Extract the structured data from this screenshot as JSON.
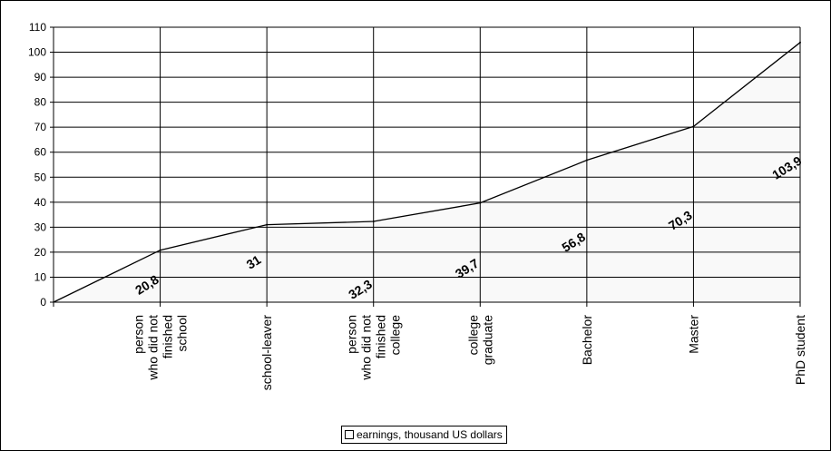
{
  "chart_data": {
    "type": "area",
    "categories": [
      [
        "person",
        "who did not",
        "finished",
        "school"
      ],
      [
        "school-leaver"
      ],
      [
        "person",
        "who did not",
        "finished",
        "college"
      ],
      [
        "college",
        "graduate"
      ],
      [
        "Bachelor"
      ],
      [
        "Master"
      ],
      [
        "PhD student"
      ]
    ],
    "values": [
      20.8,
      31,
      32.3,
      39.7,
      56.8,
      70.3,
      103.9
    ],
    "data_labels": [
      "20,8",
      "31",
      "32,3",
      "39,7",
      "56,8",
      "70,3",
      "103,9"
    ],
    "start_value": 0,
    "series": [
      {
        "name": "earnings, thousand  US dollars",
        "values": [
          20.8,
          31,
          32.3,
          39.7,
          56.8,
          70.3,
          103.9
        ]
      }
    ],
    "ylim": [
      0,
      110
    ],
    "yticks": [
      "0",
      "10",
      "20",
      "30",
      "40",
      "50",
      "60",
      "70",
      "80",
      "90",
      "100",
      "110"
    ],
    "grid": true,
    "legend": "bottom",
    "colors": {
      "area_fill": "#f9f9f9",
      "line": "#000000",
      "grid": "#000000"
    }
  },
  "legend": {
    "label": "earnings, thousand  US dollars"
  }
}
